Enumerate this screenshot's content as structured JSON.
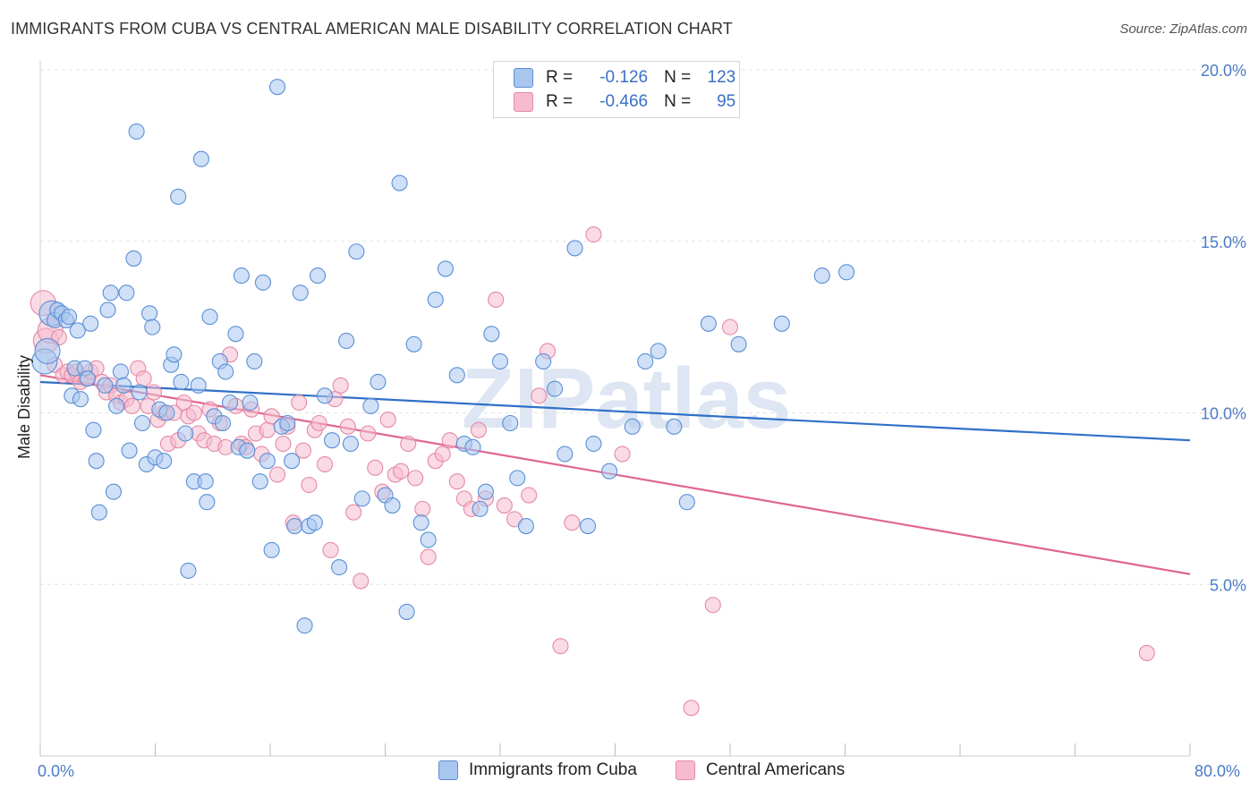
{
  "title": "IMMIGRANTS FROM CUBA VS CENTRAL AMERICAN MALE DISABILITY CORRELATION CHART",
  "source": "Source: ZipAtlas.com",
  "legend": {
    "r_label": "R =",
    "n_label": "N =",
    "cuba": {
      "r": "-0.126",
      "n": "123"
    },
    "central": {
      "r": "-0.466",
      "n": "95"
    }
  },
  "colors": {
    "cuba_fill": "#a9c6ef",
    "cuba_stroke": "#5b8fd6",
    "cuba_line": "#3070c8",
    "central_fill": "#f6bccd",
    "central_stroke": "#e48aa6",
    "central_line": "#e0668f",
    "tick": "#4a7cc8"
  },
  "chart_data": {
    "type": "scatter",
    "title": "IMMIGRANTS FROM CUBA VS CENTRAL AMERICAN MALE DISABILITY CORRELATION CHART",
    "xlabel": "",
    "ylabel": "Male Disability",
    "xlim": [
      0,
      80
    ],
    "ylim": [
      0,
      20
    ],
    "x_tick_labels": [
      "0.0%",
      "80.0%"
    ],
    "y_ticks": [
      5,
      10,
      15,
      20
    ],
    "y_tick_labels": [
      "5.0%",
      "10.0%",
      "15.0%",
      "20.0%"
    ],
    "watermark": "ZIPatlas",
    "series": [
      {
        "name": "Immigrants from Cuba",
        "trend": {
          "x0": 0,
          "y0": 10.9,
          "x1": 80,
          "y1": 9.2
        },
        "points": [
          [
            0.3,
            11.5
          ],
          [
            0.5,
            11.8
          ],
          [
            0.8,
            12.9
          ],
          [
            1.0,
            12.7
          ],
          [
            1.2,
            13.0
          ],
          [
            1.5,
            12.9
          ],
          [
            1.8,
            12.7
          ],
          [
            2.0,
            12.8
          ],
          [
            2.2,
            10.5
          ],
          [
            2.4,
            11.3
          ],
          [
            2.6,
            12.4
          ],
          [
            2.8,
            10.4
          ],
          [
            3.1,
            11.3
          ],
          [
            3.3,
            11.0
          ],
          [
            3.5,
            12.6
          ],
          [
            3.7,
            9.5
          ],
          [
            3.9,
            8.6
          ],
          [
            4.1,
            7.1
          ],
          [
            4.5,
            10.8
          ],
          [
            4.7,
            13.0
          ],
          [
            4.9,
            13.5
          ],
          [
            5.1,
            7.7
          ],
          [
            5.3,
            10.2
          ],
          [
            5.6,
            11.2
          ],
          [
            5.8,
            10.8
          ],
          [
            6.0,
            13.5
          ],
          [
            6.2,
            8.9
          ],
          [
            6.5,
            14.5
          ],
          [
            6.7,
            18.2
          ],
          [
            6.9,
            10.6
          ],
          [
            7.1,
            9.7
          ],
          [
            7.4,
            8.5
          ],
          [
            7.6,
            12.9
          ],
          [
            7.8,
            12.5
          ],
          [
            8.0,
            8.7
          ],
          [
            8.3,
            10.1
          ],
          [
            8.6,
            8.6
          ],
          [
            8.8,
            10.0
          ],
          [
            9.1,
            11.4
          ],
          [
            9.3,
            11.7
          ],
          [
            9.6,
            16.3
          ],
          [
            9.8,
            10.9
          ],
          [
            10.1,
            9.4
          ],
          [
            10.3,
            5.4
          ],
          [
            10.7,
            8.0
          ],
          [
            11.0,
            10.8
          ],
          [
            11.2,
            17.4
          ],
          [
            11.5,
            8.0
          ],
          [
            11.6,
            7.4
          ],
          [
            11.8,
            12.8
          ],
          [
            12.1,
            9.9
          ],
          [
            12.5,
            11.5
          ],
          [
            12.7,
            9.7
          ],
          [
            12.9,
            11.2
          ],
          [
            13.2,
            10.3
          ],
          [
            13.6,
            12.3
          ],
          [
            13.8,
            9.0
          ],
          [
            14.0,
            14.0
          ],
          [
            14.4,
            8.9
          ],
          [
            14.6,
            10.3
          ],
          [
            14.9,
            11.5
          ],
          [
            15.3,
            8.0
          ],
          [
            15.5,
            13.8
          ],
          [
            15.8,
            8.6
          ],
          [
            16.1,
            6.0
          ],
          [
            16.5,
            19.5
          ],
          [
            16.8,
            9.6
          ],
          [
            17.2,
            9.7
          ],
          [
            17.5,
            8.6
          ],
          [
            17.7,
            6.7
          ],
          [
            18.1,
            13.5
          ],
          [
            18.4,
            3.8
          ],
          [
            18.7,
            6.7
          ],
          [
            19.1,
            6.8
          ],
          [
            19.3,
            14.0
          ],
          [
            19.8,
            10.5
          ],
          [
            20.3,
            9.2
          ],
          [
            20.8,
            5.5
          ],
          [
            21.3,
            12.1
          ],
          [
            21.6,
            9.1
          ],
          [
            22.0,
            14.7
          ],
          [
            22.4,
            7.5
          ],
          [
            23.0,
            10.2
          ],
          [
            23.5,
            10.9
          ],
          [
            24.0,
            7.6
          ],
          [
            24.5,
            7.3
          ],
          [
            25.0,
            16.7
          ],
          [
            25.5,
            4.2
          ],
          [
            26.0,
            12.0
          ],
          [
            26.5,
            6.8
          ],
          [
            27.0,
            6.3
          ],
          [
            27.5,
            13.3
          ],
          [
            28.2,
            14.2
          ],
          [
            29.0,
            11.1
          ],
          [
            29.5,
            9.1
          ],
          [
            30.1,
            9.0
          ],
          [
            30.6,
            7.2
          ],
          [
            31.0,
            7.7
          ],
          [
            31.4,
            12.3
          ],
          [
            32.0,
            11.5
          ],
          [
            32.7,
            9.7
          ],
          [
            33.2,
            8.1
          ],
          [
            33.8,
            6.7
          ],
          [
            35.0,
            11.5
          ],
          [
            35.8,
            10.7
          ],
          [
            36.5,
            8.8
          ],
          [
            37.2,
            14.8
          ],
          [
            38.1,
            6.7
          ],
          [
            38.5,
            9.1
          ],
          [
            39.6,
            8.3
          ],
          [
            41.2,
            9.6
          ],
          [
            42.1,
            11.5
          ],
          [
            43.0,
            11.8
          ],
          [
            44.1,
            9.6
          ],
          [
            45.0,
            7.4
          ],
          [
            46.5,
            12.6
          ],
          [
            48.6,
            12.0
          ],
          [
            51.6,
            12.6
          ],
          [
            54.4,
            14.0
          ],
          [
            56.1,
            14.1
          ]
        ]
      },
      {
        "name": "Central Americans",
        "trend": {
          "x0": 0,
          "y0": 11.1,
          "x1": 80,
          "y1": 5.3
        },
        "points": [
          [
            0.2,
            13.2
          ],
          [
            0.4,
            12.1
          ],
          [
            0.7,
            12.4
          ],
          [
            1.0,
            11.4
          ],
          [
            1.3,
            12.2
          ],
          [
            1.6,
            11.1
          ],
          [
            1.9,
            11.2
          ],
          [
            2.2,
            11.1
          ],
          [
            2.5,
            11.2
          ],
          [
            2.8,
            10.9
          ],
          [
            3.2,
            11.0
          ],
          [
            3.5,
            11.2
          ],
          [
            3.9,
            11.3
          ],
          [
            4.3,
            10.9
          ],
          [
            4.6,
            10.6
          ],
          [
            4.9,
            10.8
          ],
          [
            5.3,
            10.5
          ],
          [
            5.6,
            10.3
          ],
          [
            6.0,
            10.4
          ],
          [
            6.4,
            10.2
          ],
          [
            6.8,
            11.3
          ],
          [
            7.2,
            11.0
          ],
          [
            7.5,
            10.2
          ],
          [
            7.9,
            10.6
          ],
          [
            8.2,
            9.8
          ],
          [
            8.6,
            10.0
          ],
          [
            8.9,
            9.1
          ],
          [
            9.3,
            10.0
          ],
          [
            9.6,
            9.2
          ],
          [
            10.0,
            10.3
          ],
          [
            10.3,
            9.9
          ],
          [
            10.7,
            10.0
          ],
          [
            11.0,
            9.4
          ],
          [
            11.4,
            9.2
          ],
          [
            11.8,
            10.1
          ],
          [
            12.1,
            9.1
          ],
          [
            12.5,
            9.7
          ],
          [
            12.9,
            9.0
          ],
          [
            13.2,
            11.7
          ],
          [
            13.6,
            10.2
          ],
          [
            14.0,
            9.1
          ],
          [
            14.3,
            9.0
          ],
          [
            14.7,
            10.1
          ],
          [
            15.0,
            9.4
          ],
          [
            15.4,
            8.8
          ],
          [
            15.8,
            9.5
          ],
          [
            16.1,
            9.9
          ],
          [
            16.5,
            8.2
          ],
          [
            16.9,
            9.1
          ],
          [
            17.2,
            9.6
          ],
          [
            17.6,
            6.8
          ],
          [
            18.0,
            10.3
          ],
          [
            18.3,
            8.9
          ],
          [
            18.7,
            7.9
          ],
          [
            19.1,
            9.5
          ],
          [
            19.4,
            9.7
          ],
          [
            19.8,
            8.5
          ],
          [
            20.2,
            6.0
          ],
          [
            20.5,
            10.4
          ],
          [
            20.9,
            10.8
          ],
          [
            21.4,
            9.6
          ],
          [
            21.8,
            7.1
          ],
          [
            22.3,
            5.1
          ],
          [
            22.8,
            9.4
          ],
          [
            23.3,
            8.4
          ],
          [
            23.8,
            7.7
          ],
          [
            24.2,
            9.8
          ],
          [
            24.7,
            8.2
          ],
          [
            25.1,
            8.3
          ],
          [
            25.6,
            9.1
          ],
          [
            26.1,
            8.1
          ],
          [
            26.6,
            7.2
          ],
          [
            27.0,
            5.8
          ],
          [
            27.5,
            8.6
          ],
          [
            28.0,
            8.8
          ],
          [
            28.5,
            9.2
          ],
          [
            29.0,
            8.0
          ],
          [
            29.5,
            7.5
          ],
          [
            30.0,
            7.2
          ],
          [
            30.5,
            9.5
          ],
          [
            31.0,
            7.5
          ],
          [
            31.7,
            13.3
          ],
          [
            32.3,
            7.3
          ],
          [
            33.0,
            6.9
          ],
          [
            34.0,
            7.6
          ],
          [
            34.7,
            10.5
          ],
          [
            35.3,
            11.8
          ],
          [
            36.2,
            3.2
          ],
          [
            37.0,
            6.8
          ],
          [
            38.5,
            15.2
          ],
          [
            40.5,
            8.8
          ],
          [
            45.3,
            1.4
          ],
          [
            46.8,
            4.4
          ],
          [
            48.0,
            12.5
          ],
          [
            77.0,
            3.0
          ]
        ]
      }
    ]
  },
  "bottom_legend": {
    "cuba": "Immigrants from Cuba",
    "central": "Central Americans"
  }
}
